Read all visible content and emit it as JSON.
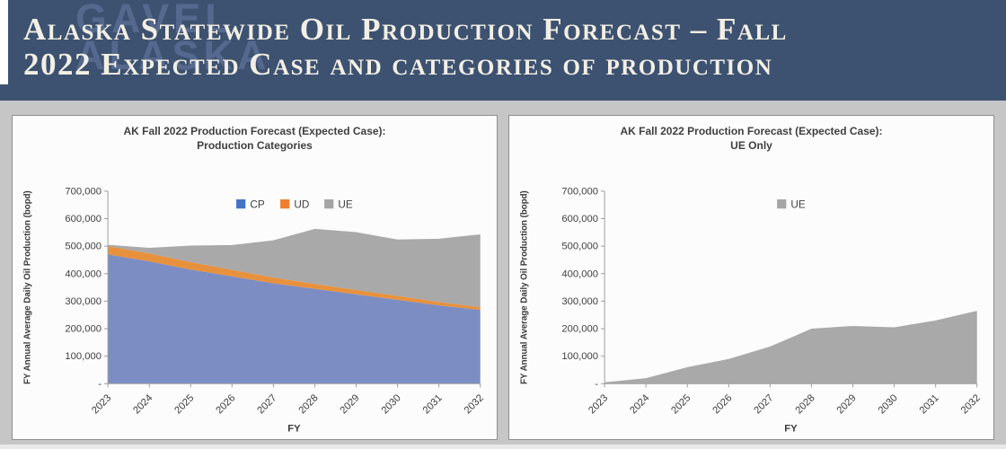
{
  "header": {
    "watermark_line1": "GAVEL",
    "watermark_line2": "ALASKA",
    "title_line1": "Alaska Statewide Oil Production Forecast – Fall",
    "title_line2": "2022 Expected Case and categories of production"
  },
  "colors": {
    "header_bg": "#3d5271",
    "cp_area": "#7c8dc4",
    "ud_area": "#e8913c",
    "ue_area": "#a9a9a9"
  },
  "chart_data": [
    {
      "type": "area",
      "stacked": true,
      "title_line1": "AK Fall 2022 Production Forecast (Expected Case):",
      "title_line2": "Production Categories",
      "ylabel": "FY Annual Average Daily Oil Production (bopd)",
      "xlabel": "FY",
      "ylim": [
        0,
        700000
      ],
      "ytick_step": 100000,
      "ytick_zero_label": "-",
      "legend_position": "top-center",
      "grid": false,
      "categories": [
        "2023",
        "2024",
        "2025",
        "2026",
        "2027",
        "2028",
        "2029",
        "2030",
        "2031",
        "2032"
      ],
      "series": [
        {
          "name": "CP",
          "color": "#7c8dc4",
          "legend_color": "#4472c4",
          "values": [
            470000,
            445000,
            415000,
            390000,
            365000,
            345000,
            325000,
            305000,
            285000,
            268000
          ]
        },
        {
          "name": "UD",
          "color": "#e8913c",
          "legend_color": "#ed7d31",
          "values": [
            30000,
            29000,
            27000,
            24000,
            21000,
            18000,
            16000,
            14000,
            12000,
            10000
          ]
        },
        {
          "name": "UE",
          "color": "#a9a9a9",
          "legend_color": "#a5a5a5",
          "values": [
            5000,
            20000,
            60000,
            90000,
            135000,
            200000,
            210000,
            205000,
            230000,
            265000
          ]
        }
      ]
    },
    {
      "type": "area",
      "stacked": true,
      "title_line1": "AK Fall 2022 Production Forecast (Expected Case):",
      "title_line2": "UE Only",
      "ylabel": "FY Annual Average Daily Oil Production (bopd)",
      "xlabel": "FY",
      "ylim": [
        0,
        700000
      ],
      "ytick_step": 100000,
      "ytick_zero_label": "-",
      "legend_position": "top-center",
      "grid": false,
      "categories": [
        "2023",
        "2024",
        "2025",
        "2026",
        "2027",
        "2028",
        "2029",
        "2030",
        "2031",
        "2032"
      ],
      "series": [
        {
          "name": "UE",
          "color": "#a9a9a9",
          "legend_color": "#a5a5a5",
          "values": [
            5000,
            20000,
            60000,
            90000,
            135000,
            200000,
            210000,
            205000,
            230000,
            265000
          ]
        }
      ]
    }
  ]
}
